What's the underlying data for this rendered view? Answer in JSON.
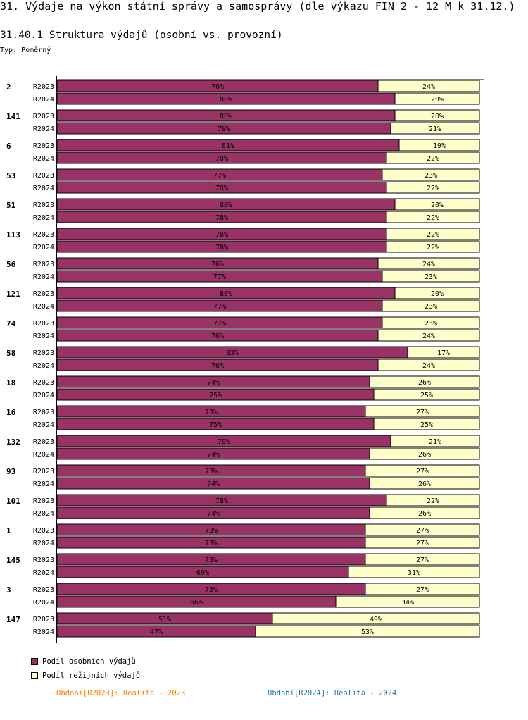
{
  "title": "31. Výdaje na výkon státní správy a samosprávy (dle výkazu FIN 2 - 12 M k 31.12.)",
  "subtitle": "31.40.1 Struktura výdajů (osobní vs. provozní)",
  "type_label": "Typ: Poměrný",
  "chart_data": {
    "type": "bar",
    "stacked": true,
    "orientation": "horizontal",
    "colors": {
      "osobni": "#993366",
      "rezijni": "#ffffcc"
    },
    "groups": [
      "2",
      "141",
      "6",
      "53",
      "51",
      "113",
      "56",
      "121",
      "74",
      "58",
      "18",
      "16",
      "132",
      "93",
      "101",
      "1",
      "145",
      "3",
      "147"
    ],
    "periods": [
      "R2023",
      "R2024"
    ],
    "series": [
      {
        "name": "Podíl osobních výdajů",
        "values": [
          [
            76,
            80
          ],
          [
            80,
            79
          ],
          [
            81,
            78
          ],
          [
            77,
            78
          ],
          [
            80,
            78
          ],
          [
            78,
            78
          ],
          [
            76,
            77
          ],
          [
            80,
            77
          ],
          [
            77,
            76
          ],
          [
            83,
            76
          ],
          [
            74,
            75
          ],
          [
            73,
            75
          ],
          [
            79,
            74
          ],
          [
            73,
            74
          ],
          [
            78,
            74
          ],
          [
            73,
            73
          ],
          [
            73,
            69
          ],
          [
            73,
            66
          ],
          [
            51,
            47
          ]
        ]
      },
      {
        "name": "Podíl režijních výdajů",
        "values": [
          [
            24,
            20
          ],
          [
            20,
            21
          ],
          [
            19,
            22
          ],
          [
            23,
            22
          ],
          [
            20,
            22
          ],
          [
            22,
            22
          ],
          [
            24,
            23
          ],
          [
            20,
            23
          ],
          [
            23,
            24
          ],
          [
            17,
            24
          ],
          [
            26,
            25
          ],
          [
            27,
            25
          ],
          [
            21,
            26
          ],
          [
            27,
            26
          ],
          [
            22,
            26
          ],
          [
            27,
            27
          ],
          [
            27,
            31
          ],
          [
            27,
            34
          ],
          [
            49,
            53
          ]
        ]
      }
    ],
    "unit": "%"
  },
  "legend": [
    "Podíl osobních výdajů",
    "Podíl režijních výdajů"
  ],
  "periods_legend": [
    {
      "text": "Období[R2023]: Realita - 2023",
      "color": "#ff8000"
    },
    {
      "text": "Období[R2024]: Realita - 2024",
      "color": "#1f77b4"
    }
  ]
}
